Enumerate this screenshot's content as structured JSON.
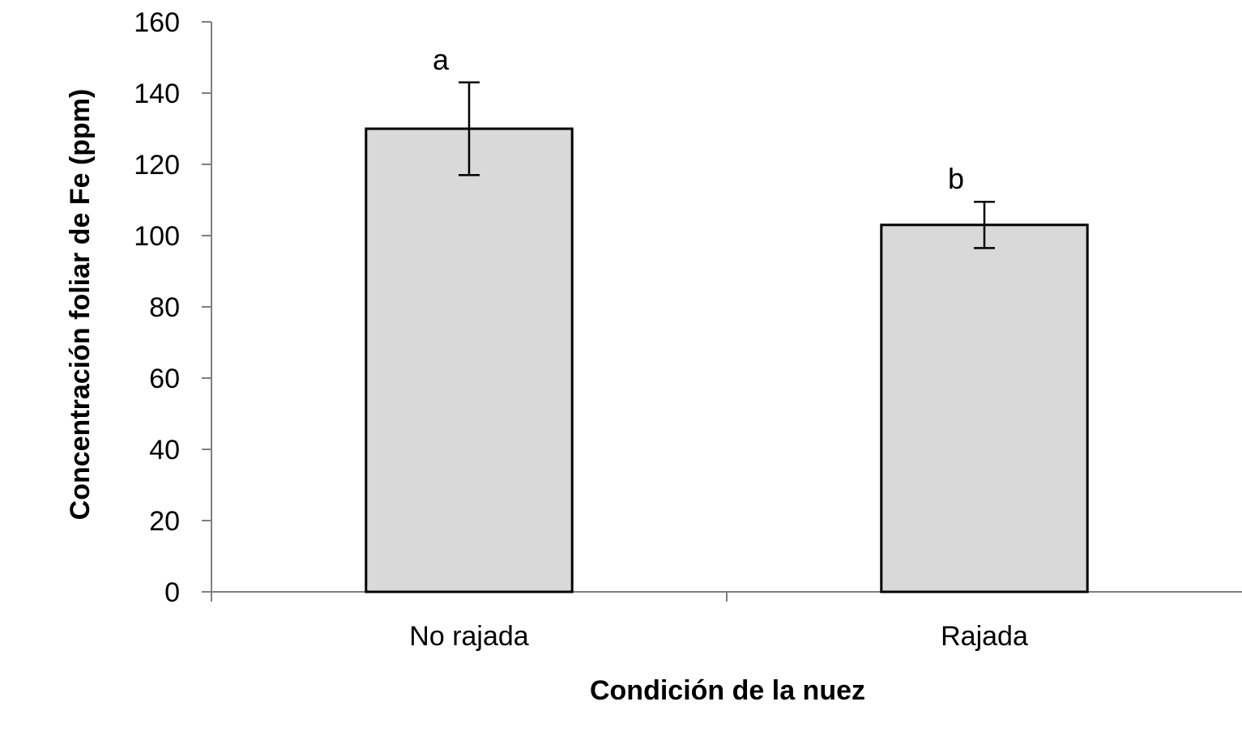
{
  "chart_data": {
    "type": "bar",
    "title": "",
    "xlabel": "Condición de la nuez",
    "ylabel": "Concentración foliar de Fe (ppm)",
    "categories": [
      "No rajada",
      "Rajada"
    ],
    "values": [
      130,
      103
    ],
    "error_low": [
      117,
      96.5
    ],
    "error_high": [
      143,
      109.5
    ],
    "significance_labels": [
      "a",
      "b"
    ],
    "ylim": [
      0,
      160
    ],
    "yticks": [
      0,
      20,
      40,
      60,
      80,
      100,
      120,
      140,
      160
    ],
    "grid": false,
    "legend": "none",
    "colors": {
      "bar_fill": "#d9d9d9",
      "bar_stroke": "#000000",
      "axis": "#7f7f7f",
      "error_bar": "#000000"
    }
  }
}
